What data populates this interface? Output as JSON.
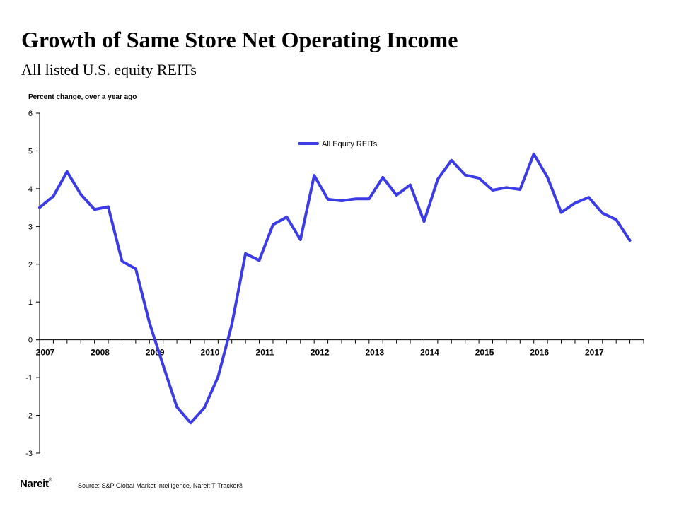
{
  "title": "Growth of Same Store Net Operating Income",
  "subtitle": "All listed U.S. equity REITs",
  "logo_text": "Nareit",
  "logo_mark": "®",
  "source": "Source: S&P Global Market Intelligence, Nareit T-Tracker®",
  "chart_data": {
    "type": "line",
    "ylabel": "Percent change, over a year ago",
    "xlabel": "",
    "ylim": [
      -3,
      6
    ],
    "yticks": [
      -3,
      -2,
      -1,
      0,
      1,
      2,
      3,
      4,
      5,
      6
    ],
    "xlim": [
      2007.0,
      2018.0
    ],
    "xtick_labels": [
      "2007",
      "2008",
      "2009",
      "2010",
      "2011",
      "2012",
      "2013",
      "2014",
      "2015",
      "2016",
      "2017"
    ],
    "grid": false,
    "legend_position": "top-center",
    "series": [
      {
        "name": "All Equity REITs",
        "color": "#3b3be8",
        "x": [
          2007.0,
          2007.25,
          2007.5,
          2007.75,
          2008.0,
          2008.25,
          2008.5,
          2008.75,
          2009.0,
          2009.25,
          2009.5,
          2009.75,
          2010.0,
          2010.25,
          2010.5,
          2010.75,
          2011.0,
          2011.25,
          2011.5,
          2011.75,
          2012.0,
          2012.25,
          2012.5,
          2012.75,
          2013.0,
          2013.25,
          2013.5,
          2013.75,
          2014.0,
          2014.25,
          2014.5,
          2014.75,
          2015.0,
          2015.25,
          2015.5,
          2015.75,
          2016.0,
          2016.25,
          2016.5,
          2016.75,
          2017.0,
          2017.25,
          2017.5,
          2017.75
        ],
        "values": [
          3.5,
          3.8,
          4.45,
          3.85,
          3.45,
          3.52,
          2.08,
          1.88,
          0.45,
          -0.68,
          -1.78,
          -2.2,
          -1.8,
          -0.98,
          0.4,
          2.28,
          2.1,
          3.05,
          3.25,
          2.65,
          4.35,
          3.72,
          3.68,
          3.73,
          3.73,
          4.3,
          3.83,
          4.1,
          3.13,
          4.25,
          4.75,
          4.36,
          4.28,
          3.96,
          4.03,
          3.98,
          4.92,
          4.3,
          3.37,
          3.62,
          3.77,
          3.35,
          3.18,
          2.63
        ]
      }
    ]
  }
}
